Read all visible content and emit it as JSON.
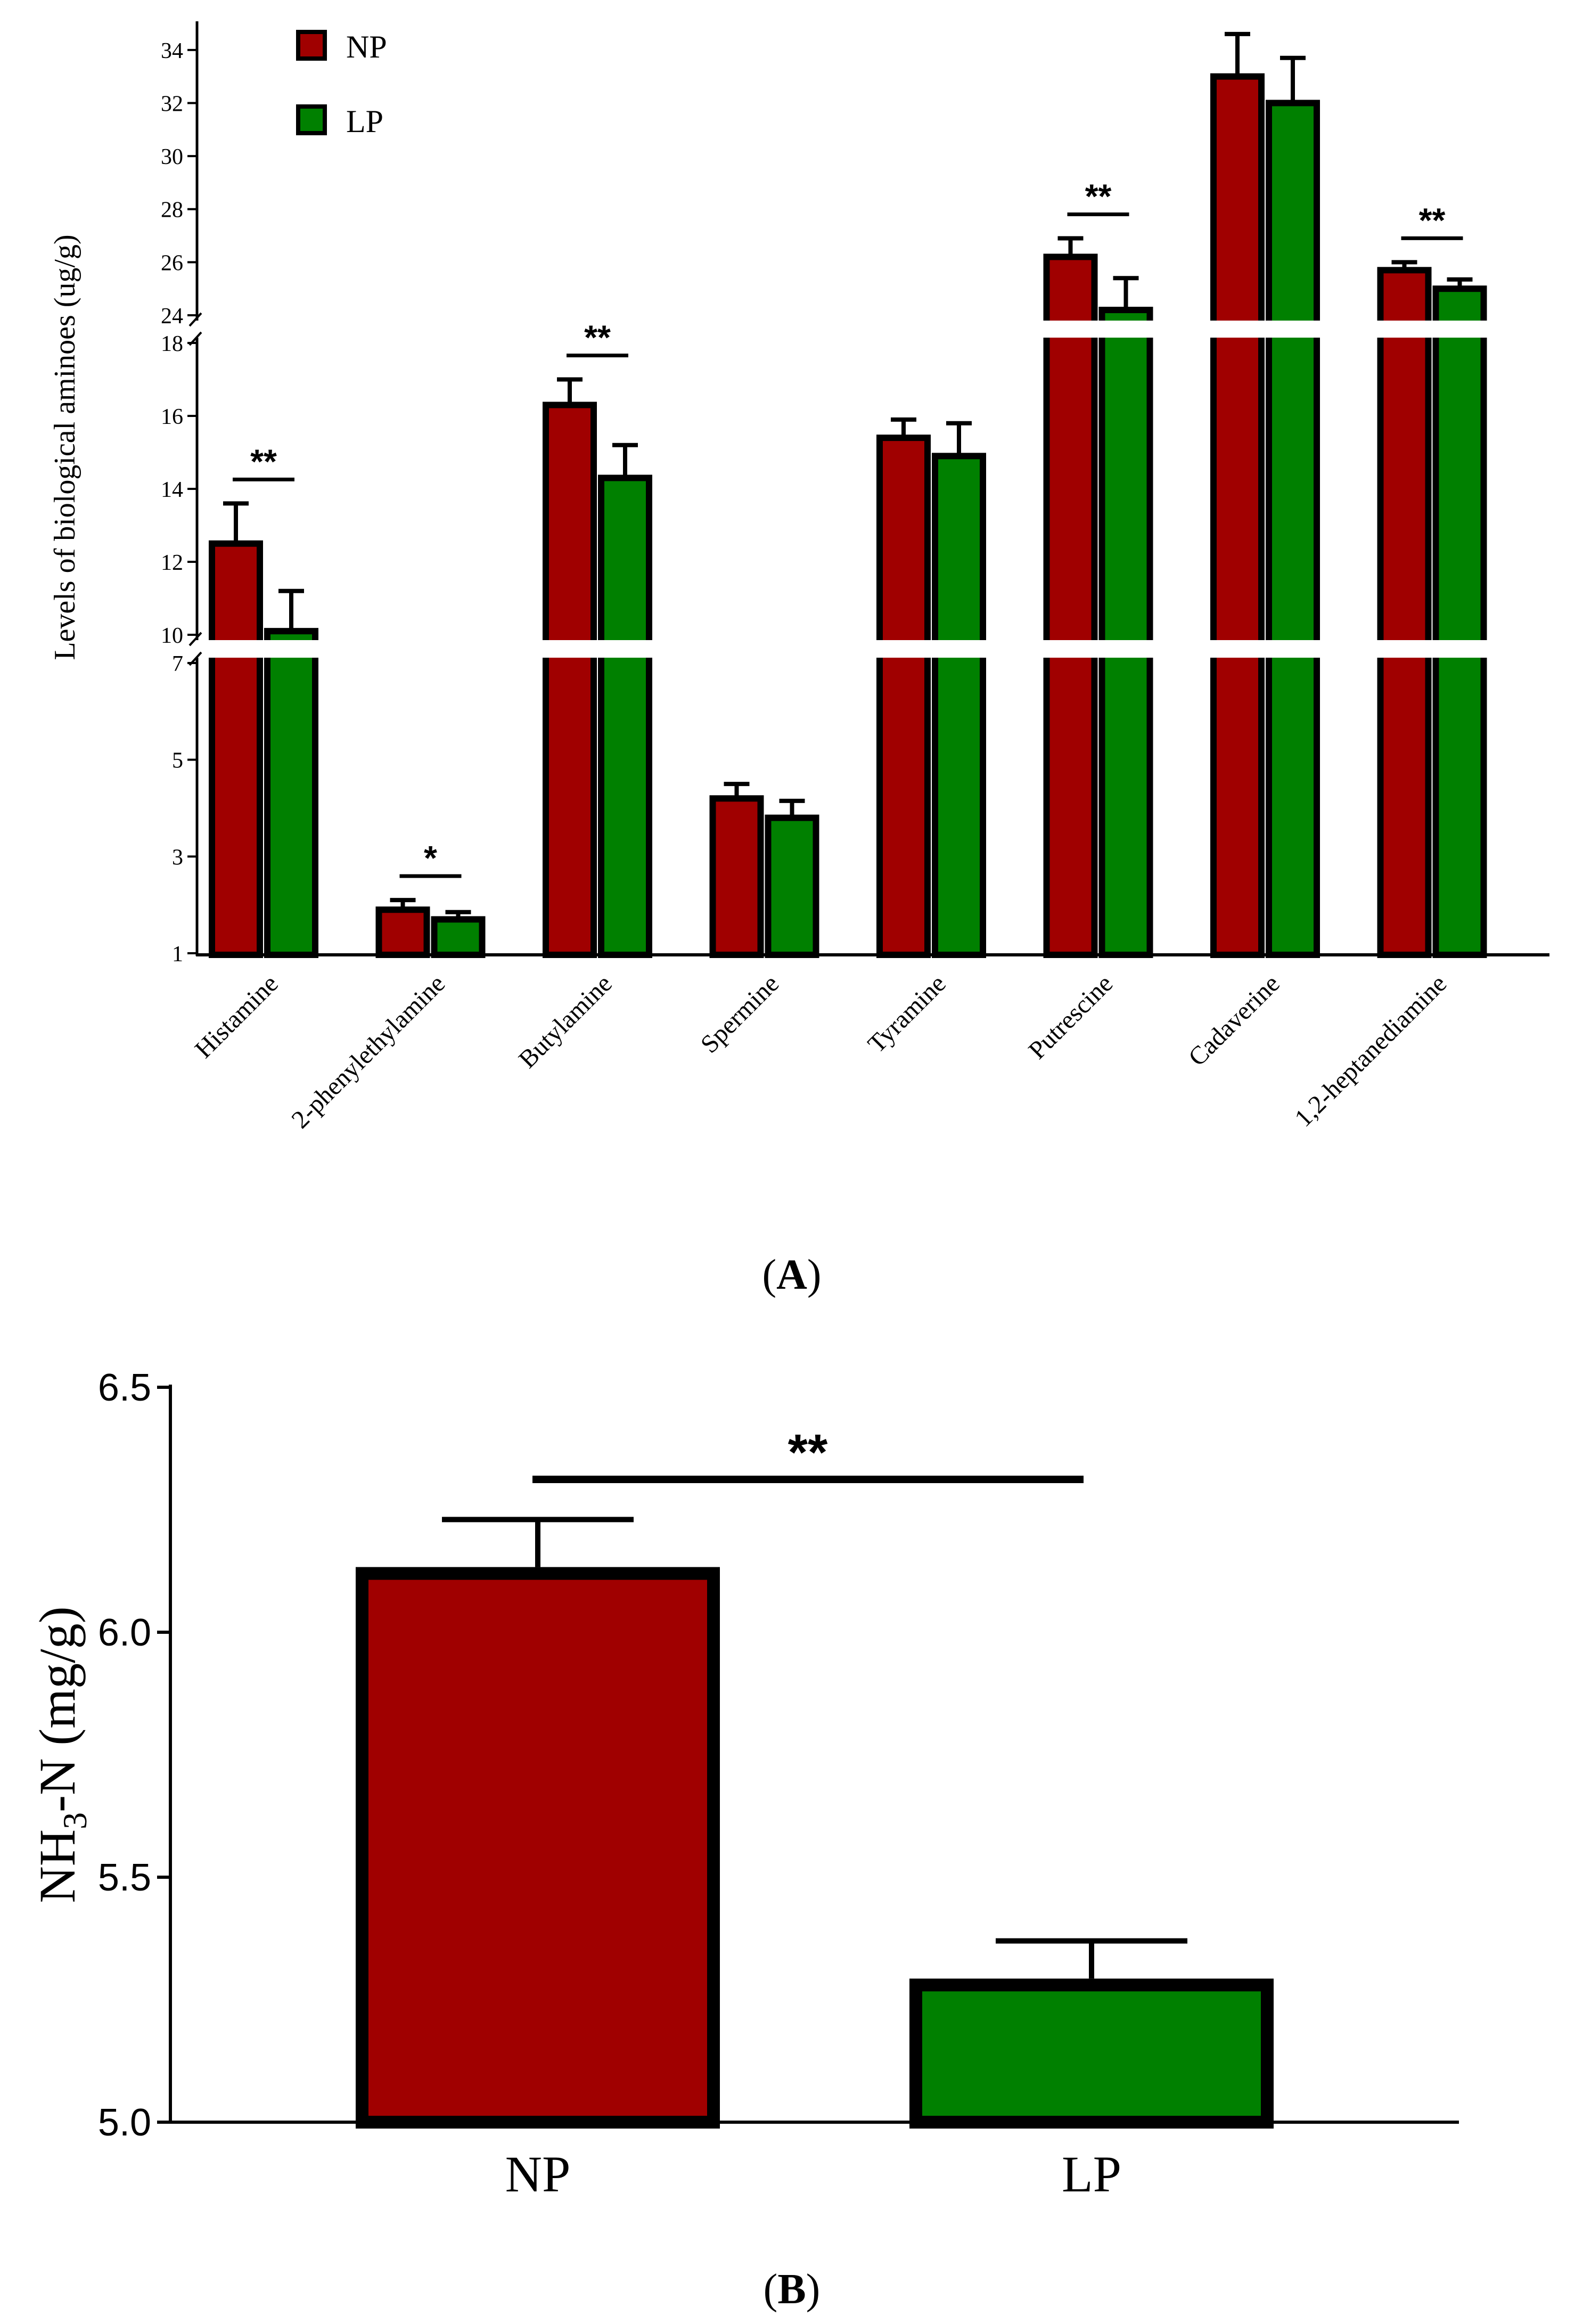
{
  "chart_data": [
    {
      "panel": "A",
      "type": "bar",
      "ylabel": "Levels of biological aminoes (ug/g)",
      "y_axis_break_segments": [
        {
          "range": [
            1,
            7
          ],
          "ticks": [
            1,
            3,
            5,
            7
          ]
        },
        {
          "range": [
            10,
            18
          ],
          "ticks": [
            10,
            12,
            14,
            16,
            18
          ]
        },
        {
          "range": [
            24,
            35
          ],
          "ticks": [
            24,
            26,
            28,
            30,
            32,
            34
          ]
        }
      ],
      "categories": [
        "Histamine",
        "2-phenylethylamine",
        "Butylamine",
        "Spermine",
        "Tyramine",
        "Putrescine",
        "Cadaverine",
        "1,2-heptanediamine"
      ],
      "series": [
        {
          "name": "NP",
          "color": "#a00000",
          "values": [
            12.5,
            1.9,
            16.3,
            4.2,
            15.4,
            26.2,
            33.0,
            25.7
          ],
          "errors": [
            1.1,
            0.2,
            0.7,
            0.3,
            0.5,
            0.7,
            1.6,
            0.3
          ]
        },
        {
          "name": "LP",
          "color": "#008000",
          "values": [
            10.1,
            1.7,
            14.3,
            3.8,
            14.9,
            24.2,
            32.0,
            25.0
          ],
          "errors": [
            1.1,
            0.15,
            0.9,
            0.35,
            0.9,
            1.2,
            1.7,
            0.35
          ]
        }
      ],
      "significance": [
        {
          "category": "Histamine",
          "label": "**"
        },
        {
          "category": "2-phenylethylamine",
          "label": "*"
        },
        {
          "category": "Butylamine",
          "label": "**"
        },
        {
          "category": "Putrescine",
          "label": "**"
        },
        {
          "category": "1,2-heptanediamine",
          "label": "**"
        }
      ],
      "legend": [
        "NP",
        "LP"
      ],
      "legend_position": "top-left",
      "panel_label": "A"
    },
    {
      "panel": "B",
      "type": "bar",
      "ylabel": "NH3-N (mg/g)",
      "ylabel_main": "NH",
      "ylabel_sub": "3",
      "ylabel_rest": "-N (mg/g)",
      "ylim": [
        5.0,
        6.5
      ],
      "ticks": [
        "5.0",
        "5.5",
        "6.0",
        "6.5"
      ],
      "categories": [
        "NP",
        "LP"
      ],
      "values": [
        6.12,
        5.28
      ],
      "errors": [
        0.11,
        0.09
      ],
      "colors": [
        "#a00000",
        "#008000"
      ],
      "significance": {
        "label": "**"
      },
      "panel_label": "B"
    }
  ]
}
